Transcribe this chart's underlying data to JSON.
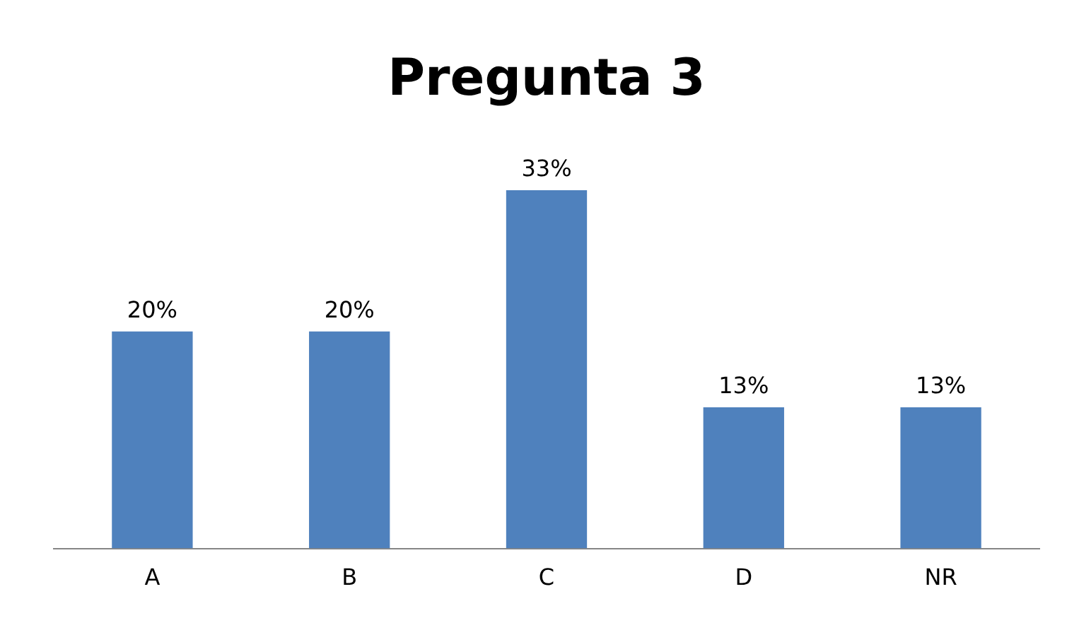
{
  "chart_data": {
    "type": "bar",
    "title": "Pregunta 3",
    "categories": [
      "A",
      "B",
      "C",
      "D",
      "NR"
    ],
    "values": [
      20,
      20,
      33,
      13,
      13
    ],
    "value_labels": [
      "20%",
      "20%",
      "33%",
      "13%",
      "13%"
    ],
    "color": "#4f81bd",
    "grid": false,
    "legend": false
  }
}
